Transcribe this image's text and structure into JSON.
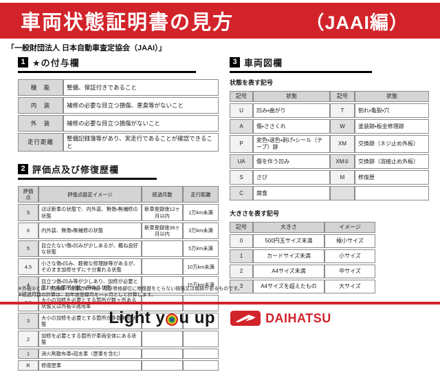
{
  "banner": {
    "title": "車両状態証明書の見方",
    "edition": "（JAAI編）",
    "bg_color": "#d2232a"
  },
  "subtitle": "「一般財団法人 日本自動車査定協会（JAAI）」",
  "section1": {
    "num": "1",
    "title": "★の付与欄",
    "rows": [
      [
        "機　能",
        "整備、保証付きであること"
      ],
      [
        "内　装",
        "補修の必要な目立つ損傷、悪臭等がないこと"
      ],
      [
        "外　装",
        "補修の必要な目立つ損傷がないこと"
      ],
      [
        "走行距離",
        "整備記録簿等があり、実走行であることが確認できること"
      ]
    ]
  },
  "section2": {
    "num": "2",
    "title": "評価点及び修復歴欄",
    "headers": [
      "評価点",
      "評価点設定イメージ",
      "経過月数",
      "走行距離"
    ],
    "rows": [
      [
        "S",
        "ほぼ新車の状態で、内外装、無傷・無補修の状態",
        "新車登録後12ヶ月以内",
        "1万km未満"
      ],
      [
        "6",
        "内外装、無傷・無補修の状態",
        "新車登録後36ヶ月以内",
        "3万km未満"
      ],
      [
        "5",
        "目立たない傷・凹みが少しあるが、概ね良好な状態",
        "",
        "5万km未満"
      ],
      [
        "4.5",
        "小さな傷・凹み、軽微な修理跡等があるが、そのまま加修せずに十分乗れる状態",
        "",
        "10万km未満"
      ],
      [
        "4",
        "目立つ傷・凹み等が少しあり、加修が必要と思われる箇所が数ヶ所ある状態",
        "",
        "15万km未満"
      ],
      [
        "3.5",
        "大小の加修を必要とする箇所が数ヶ所ある状態又は外板②適用車",
        "",
        ""
      ],
      [
        "3",
        "大小の加修を必要とする箇所が多数ある状態",
        "",
        ""
      ],
      [
        "2",
        "加修を必要とする箇所が車両全体にある状態",
        "",
        ""
      ],
      [
        "1",
        "消火剤散布車・冠水車（歴車を含む）",
        "",
        ""
      ],
      [
        "R",
        "修復歴車",
        "",
        ""
      ]
    ]
  },
  "section3": {
    "num": "3",
    "title": "車両図欄",
    "state_label": "状態を表す記号",
    "state_headers": [
      "記号",
      "状態",
      "記号",
      "状態"
    ],
    "state_rows": [
      [
        "U",
        "凹み・曲がり",
        "T",
        "割れ・亀裂・穴"
      ],
      [
        "A",
        "傷・ささくれ",
        "W",
        "塗装跡・板金修理跡"
      ],
      [
        "P",
        "変色・退色・剥げ・シール（テープ）跡",
        "XM",
        "交換跡（ネジ止め外板）"
      ],
      [
        "UA",
        "傷を伴う凹み",
        "XM②",
        "交換跡（溶接止め外板）"
      ],
      [
        "S",
        "さび",
        "M",
        "修復歴"
      ],
      [
        "C",
        "腐食",
        "",
        ""
      ]
    ],
    "size_label": "大きさを表す記号",
    "size_headers": [
      "記号",
      "大きさ",
      "イメージ"
    ],
    "size_rows": [
      [
        "0",
        "500円玉サイズ未満",
        "極小サイズ"
      ],
      [
        "1",
        "カードサイズ未満",
        "小サイズ"
      ],
      [
        "2",
        "A4サイズ未満",
        "中サイズ"
      ],
      [
        "3",
        "A4サイズを超えたもの",
        "大サイズ"
      ]
    ]
  },
  "notes": [
    "※外板②とは、交換跡（溶接止め外板）及び骨格部位に修復歴をとらない損傷又は痕跡があるものです。",
    "※経過月数の計算は、初年度登録月を一ヶ月として計算します。"
  ],
  "footer": {
    "light_part1": "Light y",
    "light_part2": "u up",
    "brand": "DAIHATSU",
    "accent_color": "#d2232a"
  }
}
